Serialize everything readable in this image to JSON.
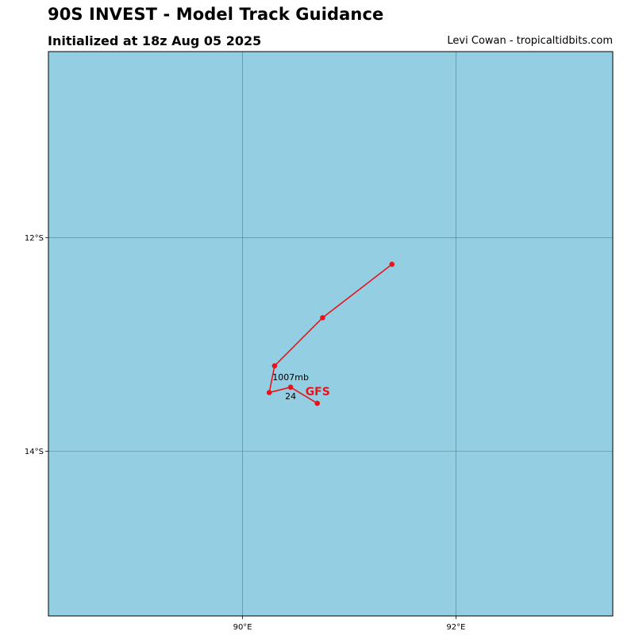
{
  "header": {
    "title": "90S INVEST - Model Track Guidance",
    "subtitle": "Initialized at 18z Aug 05 2025",
    "credit": "Levi Cowan - tropicaltidbits.com"
  },
  "colors": {
    "ocean": "#94cee3",
    "gridline": "#4b7f8f",
    "track": "#e8141c",
    "label": "#e8141c"
  },
  "map": {
    "lon_range": [
      88.18,
      93.47
    ],
    "lat_range": [
      -15.54,
      -10.26
    ],
    "lon_ticks": [
      {
        "value": 90,
        "label": "90°E"
      },
      {
        "value": 92,
        "label": "92°E"
      }
    ],
    "lat_ticks": [
      {
        "value": -12,
        "label": "12°S"
      },
      {
        "value": -14,
        "label": "14°S"
      }
    ]
  },
  "track": {
    "model": "GFS",
    "points": [
      {
        "lon": 90.7,
        "lat": -13.55
      },
      {
        "lon": 90.45,
        "lat": -13.4
      },
      {
        "lon": 90.25,
        "lat": -13.45
      },
      {
        "lon": 90.3,
        "lat": -13.2
      },
      {
        "lon": 90.75,
        "lat": -12.75
      },
      {
        "lon": 91.4,
        "lat": -12.25
      }
    ],
    "annotations": {
      "pressure": "1007mb",
      "hour": "24"
    }
  }
}
